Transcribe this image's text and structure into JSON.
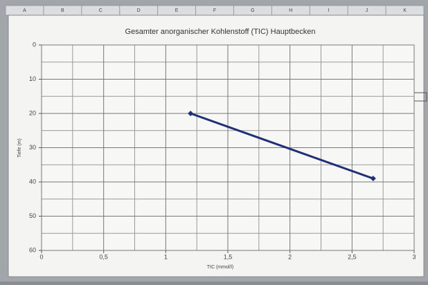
{
  "column_headers": [
    "A",
    "B",
    "C",
    "D",
    "E",
    "F",
    "G",
    "H",
    "I",
    "J",
    "K"
  ],
  "chart_data": {
    "type": "line",
    "title": "Gesamter anorganischer Kohlenstoff (TIC) Hauptbecken",
    "x_label": "TIC (mmol/l)",
    "y_label": "Tiefe (m)",
    "x": [
      1.2,
      2.67
    ],
    "series": [
      {
        "color": "#1f2f78",
        "values": [
          20,
          39
        ]
      }
    ],
    "xlim": [
      0,
      3
    ],
    "ylim": [
      0,
      60
    ],
    "y_inverted": true,
    "xticks": [
      0,
      {
        "value": 0.5,
        "label": "0,5"
      },
      1,
      {
        "value": 1.5,
        "label": "1,5"
      },
      2,
      {
        "value": 2.5,
        "label": "2,5"
      },
      3
    ],
    "yticks": [
      0,
      10,
      20,
      30,
      40,
      50,
      60
    ],
    "xminorticks": [
      0.25,
      0.75,
      1.25,
      1.75,
      2.25,
      2.75
    ],
    "yminorticks": [
      5,
      15,
      25,
      35,
      45,
      55
    ],
    "grid": true
  }
}
